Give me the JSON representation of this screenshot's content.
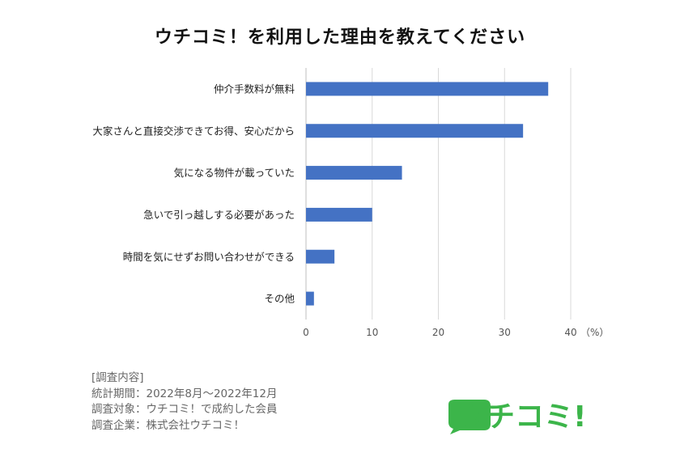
{
  "chart_data": {
    "type": "bar",
    "orientation": "horizontal",
    "title": "ウチコミ！を利用した理由を教えてください",
    "categories": [
      "仲介手数料が無料",
      "大家さんと直接交渉できてお得、安心だから",
      "気になる物件が載っていた",
      "急いで引っ越しする必要があった",
      "時間を気にせずお問い合わせができる",
      "その他"
    ],
    "values": [
      36.6,
      32.8,
      14.5,
      10.0,
      4.3,
      1.2
    ],
    "xlim": [
      0,
      40
    ],
    "xticks": [
      0,
      10,
      20,
      30,
      40
    ],
    "xunit": "（%）",
    "bar_color": "#4472C4",
    "grid": true,
    "legend": "none"
  },
  "survey": {
    "heading": "[調査内容]",
    "lines": [
      "統計期間：2022年8月～2022年12月",
      "調査対象：ウチコミ！で成約した会員",
      "調査企業：株式会社ウチコミ！"
    ]
  },
  "logo": {
    "text": "ウチコミ!",
    "color": "#3CB54A"
  }
}
